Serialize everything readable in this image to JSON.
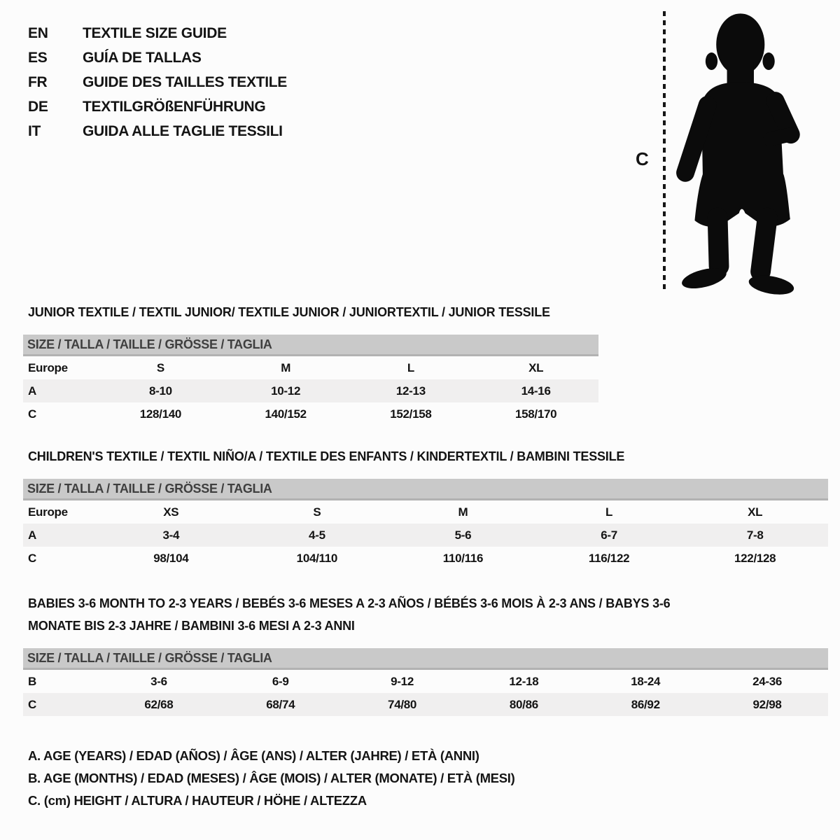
{
  "languages": [
    {
      "code": "EN",
      "title": "TEXTILE SIZE GUIDE"
    },
    {
      "code": "ES",
      "title": "GUÍA DE TALLAS"
    },
    {
      "code": "FR",
      "title": "GUIDE DES TAILLES TEXTILE"
    },
    {
      "code": "DE",
      "title": "TEXTILGRÖßENFÜHRUNG"
    },
    {
      "code": "IT",
      "title": "GUIDA ALLE TAGLIE TESSILI"
    }
  ],
  "figure": {
    "label": "C",
    "icon": "toddler-silhouette"
  },
  "sections": [
    {
      "title": "JUNIOR TEXTILE / TEXTIL JUNIOR/ TEXTILE JUNIOR / JUNIORTEXTIL / JUNIOR TESSILE",
      "table": {
        "header": "SIZE / TALLA / TAILLE / GRÖSSE / TAGLIA",
        "rows": [
          {
            "label": "Europe",
            "values": [
              "S",
              "M",
              "L",
              "XL"
            ],
            "shaded": false
          },
          {
            "label": "A",
            "values": [
              "8-10",
              "10-12",
              "12-13",
              "14-16"
            ],
            "shaded": true
          },
          {
            "label": "C",
            "values": [
              "128/140",
              "140/152",
              "152/158",
              "158/170"
            ],
            "shaded": false
          }
        ]
      }
    },
    {
      "title": "CHILDREN'S TEXTILE / TEXTIL NIÑO/A / TEXTILE DES ENFANTS / KINDERTEXTIL / BAMBINI TESSILE",
      "table": {
        "header": "SIZE / TALLA / TAILLE / GRÖSSE / TAGLIA",
        "rows": [
          {
            "label": "Europe",
            "values": [
              "XS",
              "S",
              "M",
              "L",
              "XL"
            ],
            "shaded": false
          },
          {
            "label": "A",
            "values": [
              "3-4",
              "4-5",
              "5-6",
              "6-7",
              "7-8"
            ],
            "shaded": true
          },
          {
            "label": "C",
            "values": [
              "98/104",
              "104/110",
              "110/116",
              "116/122",
              "122/128"
            ],
            "shaded": false
          }
        ]
      }
    },
    {
      "title": "BABIES 3-6 MONTH TO 2-3 YEARS / BEBÉS 3-6 MESES A 2-3 AÑOS / BÉBÉS 3-6 MOIS À 2-3 ANS / BABYS 3-6 MONATE BIS 2-3 JAHRE / BAMBINI 3-6 MESI A 2-3 ANNI",
      "table": {
        "header": "SIZE / TALLA / TAILLE / GRÖSSE / TAGLIA",
        "rows": [
          {
            "label": "B",
            "values": [
              "3-6",
              "6-9",
              "9-12",
              "12-18",
              "18-24",
              "24-36"
            ],
            "shaded": false
          },
          {
            "label": "C",
            "values": [
              "62/68",
              "68/74",
              "74/80",
              "80/86",
              "86/92",
              "92/98"
            ],
            "shaded": true
          }
        ]
      }
    }
  ],
  "footnotes": [
    "A. AGE (YEARS) / EDAD (AÑOS) / ÂGE (ANS) / ALTER (JAHRE) / ETÀ (ANNI)",
    "B. AGE (MONTHS) / EDAD (MESES) / ÂGE (MOIS) / ALTER (MONATE) / ETÀ (MESI)",
    "C. (cm) HEIGHT / ALTURA / HAUTEUR / HÖHE / ALTEZZA"
  ],
  "colors": {
    "table_header_bg": "#c9c9c9",
    "table_header_border": "#b2b2b2",
    "row_shade": "#f0efef",
    "ink": "#141414",
    "silhouette": "#0b0b0b"
  }
}
